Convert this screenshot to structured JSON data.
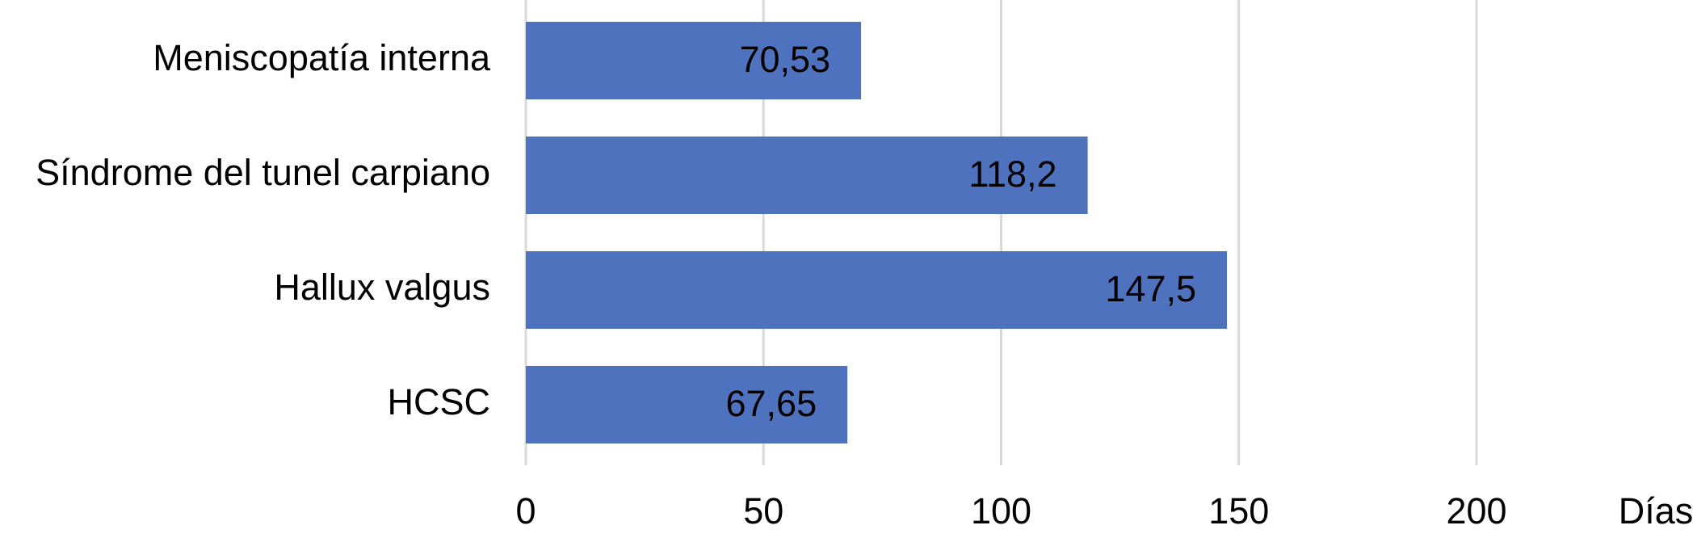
{
  "chart_data": {
    "type": "bar",
    "orientation": "horizontal",
    "categories": [
      "Meniscopatía interna",
      "Síndrome del tunel carpiano",
      "Hallux valgus",
      "HCSC"
    ],
    "values": [
      70.53,
      118.2,
      147.5,
      67.65
    ],
    "value_labels": [
      "70,53",
      "118,2",
      "147,5",
      "67,65"
    ],
    "color": "#4e72bd",
    "x_label": "Días",
    "xlim": [
      0,
      200
    ],
    "xticks": [
      0,
      50,
      100,
      150,
      200
    ],
    "grid": true
  }
}
